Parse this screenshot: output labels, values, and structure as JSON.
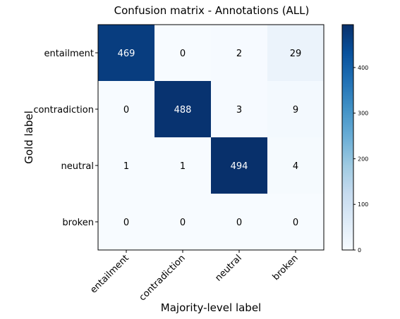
{
  "chart_data": {
    "type": "heatmap",
    "title": "Confusion matrix - Annotations (ALL)",
    "xlabel": "Majority-level label",
    "ylabel": "Gold label",
    "x_categories": [
      "entailment",
      "contradiction",
      "neutral",
      "broken"
    ],
    "y_categories": [
      "entailment",
      "contradiction",
      "neutral",
      "broken"
    ],
    "values": [
      [
        469,
        0,
        2,
        29
      ],
      [
        0,
        488,
        3,
        9
      ],
      [
        1,
        1,
        494,
        4
      ],
      [
        0,
        0,
        0,
        0
      ]
    ],
    "colormap": "Blues",
    "colorbar": {
      "range": [
        0,
        494
      ],
      "ticks": [
        0,
        100,
        200,
        300,
        400
      ],
      "tick_labels": [
        "0",
        "100",
        "200",
        "300",
        "400"
      ]
    },
    "colors": {
      "low": "#f7fbff",
      "high": "#08306b"
    }
  }
}
